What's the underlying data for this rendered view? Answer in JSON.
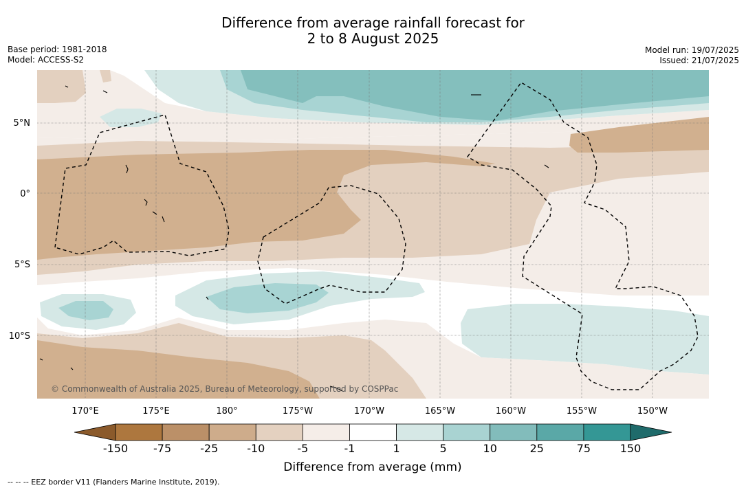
{
  "title_line1": "Difference from average rainfall forecast for",
  "title_line2": "2 to 8 August 2025",
  "left_meta": {
    "base_period": "Base period: 1981-2018",
    "model": "Model: ACCESS-S2"
  },
  "right_meta": {
    "model_run": "Model run: 19/07/2025",
    "issued": "Issued: 21/07/2025"
  },
  "map": {
    "lat_labels": [
      "5°N",
      "0°",
      "5°S",
      "10°S"
    ],
    "lon_labels": [
      "170°E",
      "175°E",
      "180°",
      "175°W",
      "170°W",
      "165°W",
      "160°W",
      "155°W",
      "150°W"
    ],
    "copyright": "© Commonwealth of Australia 2025, Bureau of Meteorology, supported by COSPPac",
    "colors": {
      "wet_75": "#84bfbd",
      "wet_25": "#a8d4d3",
      "wet_10": "#d5e8e6",
      "dry_10": "#f4ede8",
      "dry_25": "#e3d0bf",
      "dry_75": "#d1b08f"
    }
  },
  "colorbar": {
    "ticks": [
      "-150",
      "-75",
      "-25",
      "-10",
      "-5",
      "-1",
      "1",
      "5",
      "10",
      "25",
      "75",
      "150"
    ],
    "colors": [
      "#8b5a2b",
      "#ad773e",
      "#bb9068",
      "#ceac8b",
      "#e4d1c0",
      "#f5ede8",
      "#ffffff",
      "#d6e8e6",
      "#a9d3d2",
      "#82bcbb",
      "#5aa8a7",
      "#349795",
      "#1f6b6b"
    ],
    "label": "Difference from average (mm)"
  },
  "footer": "-- -- -- EEZ border V11 (Flanders Marine Institute, 2019)."
}
